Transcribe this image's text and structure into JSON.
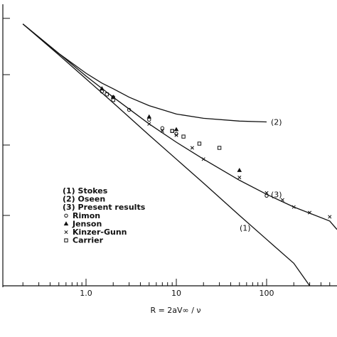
{
  "chart_data": {
    "type": "line",
    "xlabel": "R = 2aV∞ / ν",
    "x_scale": "log",
    "x_ticks": [
      "1.0",
      "10",
      "100"
    ],
    "xlim": [
      0.1,
      2000
    ],
    "ylim": [
      0,
      1
    ],
    "series": [
      {
        "name": "(1) Stokes",
        "curve_label": "(1)",
        "x": [
          0.2,
          0.5,
          1,
          2,
          5,
          10,
          20,
          50,
          100,
          200,
          300
        ],
        "y": [
          0.93,
          0.82,
          0.735,
          0.65,
          0.535,
          0.45,
          0.365,
          0.25,
          0.165,
          0.08,
          0.0
        ]
      },
      {
        "name": "(2) Oseen",
        "curve_label": "(2)",
        "x": [
          0.2,
          0.5,
          1,
          1.5,
          2,
          3,
          5,
          10,
          20,
          50,
          100
        ],
        "y": [
          0.93,
          0.825,
          0.755,
          0.72,
          0.7,
          0.67,
          0.64,
          0.61,
          0.595,
          0.585,
          0.582
        ]
      },
      {
        "name": "(3) Present results",
        "curve_label": "(3)",
        "x": [
          0.2,
          0.5,
          1,
          2,
          5,
          10,
          20,
          50,
          100,
          200,
          500,
          1000
        ],
        "y": [
          0.93,
          0.825,
          0.745,
          0.67,
          0.575,
          0.51,
          0.45,
          0.375,
          0.325,
          0.28,
          0.23,
          0.2
        ]
      }
    ],
    "markers": [
      {
        "name": "Rimon",
        "symbol": "circle",
        "x": [
          1.5,
          2,
          3,
          5,
          7,
          9,
          10,
          100
        ],
        "y": [
          0.69,
          0.67,
          0.625,
          0.59,
          0.56,
          0.55,
          0.54,
          0.32
        ]
      },
      {
        "name": "Jenson",
        "symbol": "triangle",
        "x": [
          1.5,
          2,
          5,
          10,
          50
        ],
        "y": [
          0.7,
          0.67,
          0.6,
          0.555,
          0.41
        ]
      },
      {
        "name": "Kinzer-Gunn",
        "symbol": "x",
        "x": [
          5,
          7,
          10,
          15,
          20,
          50,
          100,
          150,
          200,
          300,
          500,
          700,
          1000
        ],
        "y": [
          0.575,
          0.55,
          0.535,
          0.49,
          0.45,
          0.385,
          0.33,
          0.305,
          0.28,
          0.26,
          0.245,
          0.22,
          0.205
        ]
      },
      {
        "name": "Carrier",
        "symbol": "square",
        "x": [
          1.7,
          2,
          9,
          12,
          18,
          30
        ],
        "y": [
          0.68,
          0.66,
          0.55,
          0.53,
          0.505,
          0.49
        ]
      }
    ],
    "legend": {
      "placement": "center-left",
      "entries": [
        {
          "label": "(1) Stokes",
          "symbol": ""
        },
        {
          "label": "(2) Oseen",
          "symbol": ""
        },
        {
          "label": "(3) Present results",
          "symbol": ""
        },
        {
          "label": "Rimon",
          "symbol": "circle"
        },
        {
          "label": "Jenson",
          "symbol": "triangle"
        },
        {
          "label": "Kinzer-Gunn",
          "symbol": "x"
        },
        {
          "label": "Carrier",
          "symbol": "square"
        }
      ]
    },
    "grid": false
  }
}
